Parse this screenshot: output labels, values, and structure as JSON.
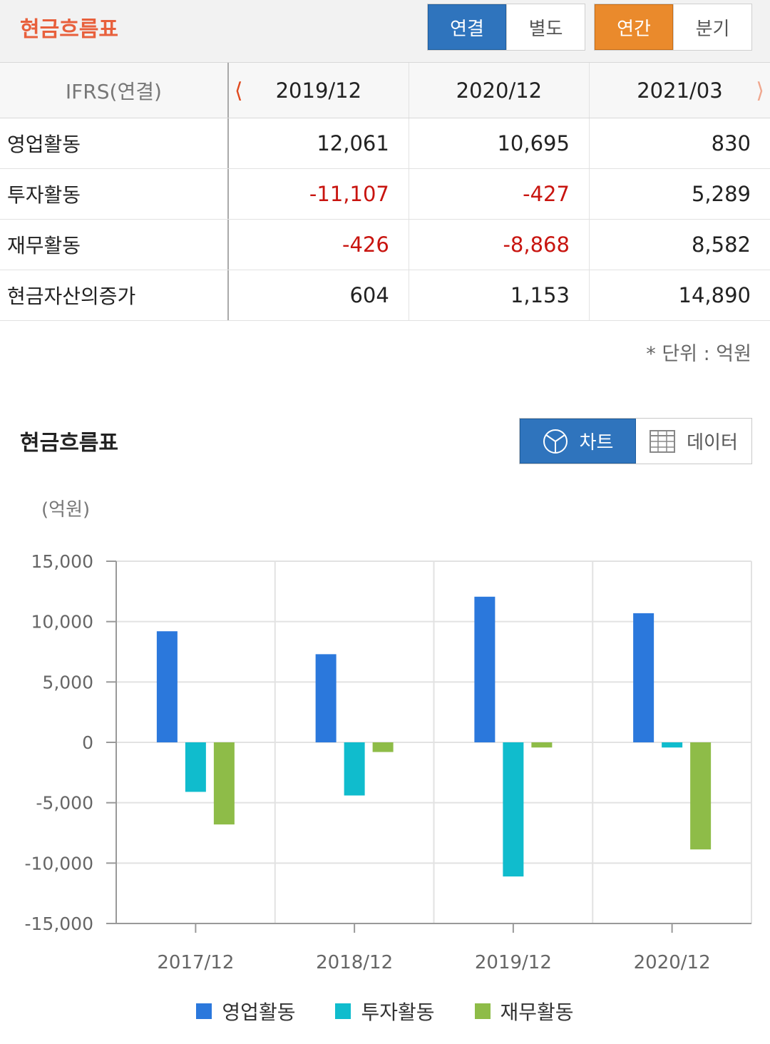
{
  "header": {
    "title": "현금흐름표",
    "scope_options": [
      "연결",
      "별도"
    ],
    "scope_selected": 0,
    "period_options": [
      "연간",
      "분기"
    ],
    "period_selected": 0
  },
  "table": {
    "label_header": "IFRS(연결)",
    "columns": [
      "2019/12",
      "2020/12",
      "2021/03"
    ],
    "rows": [
      {
        "label": "영업활동",
        "values": [
          "12,061",
          "10,695",
          "830"
        ]
      },
      {
        "label": "투자활동",
        "values": [
          "-11,107",
          "-427",
          "5,289"
        ]
      },
      {
        "label": "재무활동",
        "values": [
          "-426",
          "-8,868",
          "8,582"
        ]
      },
      {
        "label": "현금자산의증가",
        "values": [
          "604",
          "1,153",
          "14,890"
        ]
      }
    ],
    "unit_note": "* 단위 : 억원"
  },
  "chart_section": {
    "title": "현금흐름표",
    "chart_button": "차트",
    "data_button": "데이터",
    "y_unit": "(억원)"
  },
  "colors": {
    "accent_orange": "#e8603c",
    "tab_blue": "#2f74bd",
    "tab_orange": "#ea8a2c",
    "negative_red": "#c8140f",
    "series": [
      "#2b78dc",
      "#10bccd",
      "#8ebc48"
    ]
  },
  "chart_data": {
    "type": "bar",
    "categories": [
      "2017/12",
      "2018/12",
      "2019/12",
      "2020/12"
    ],
    "series": [
      {
        "name": "영업활동",
        "values": [
          9200,
          7300,
          12061,
          10695
        ]
      },
      {
        "name": "투자활동",
        "values": [
          -4100,
          -4400,
          -11107,
          -427
        ]
      },
      {
        "name": "재무활동",
        "values": [
          -6800,
          -800,
          -426,
          -8868
        ]
      }
    ],
    "ylim": [
      -15000,
      15000
    ],
    "yticks": [
      "15,000",
      "10,000",
      "5,000",
      "0",
      "-5,000",
      "-10,000",
      "-15,000"
    ],
    "grid": true,
    "legend": "bottom"
  }
}
